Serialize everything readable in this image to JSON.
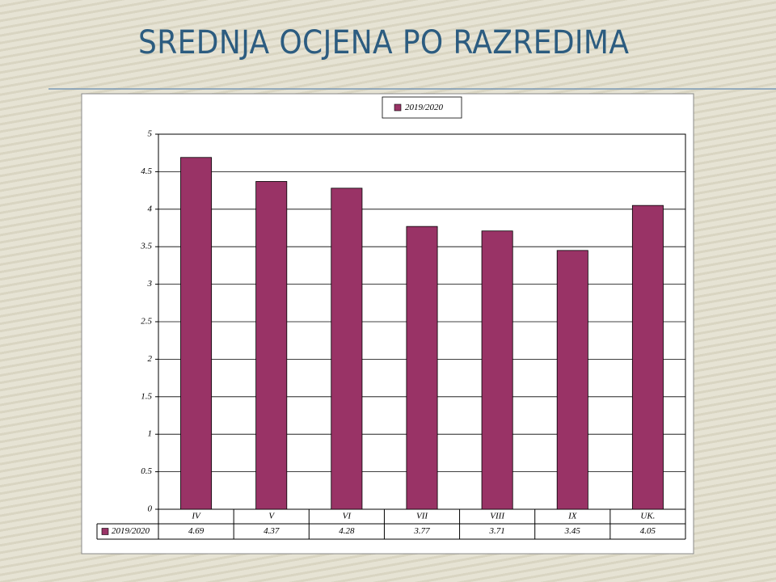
{
  "chart_data": {
    "type": "bar",
    "title": "SREDNJA OCJENA PO RAZREDIMA",
    "categories": [
      "IV",
      "V",
      "VI",
      "VII",
      "VIII",
      "IX",
      "UK."
    ],
    "series": [
      {
        "name": "2019/2020",
        "color": "#993366",
        "values": [
          4.69,
          4.37,
          4.28,
          3.77,
          3.71,
          3.45,
          4.05
        ]
      }
    ],
    "ylim": [
      0,
      5
    ],
    "yticks": [
      0,
      0.5,
      1,
      1.5,
      2,
      2.5,
      3,
      3.5,
      4,
      4.5,
      5
    ],
    "grid": true,
    "legend": "top",
    "data_table": true
  }
}
